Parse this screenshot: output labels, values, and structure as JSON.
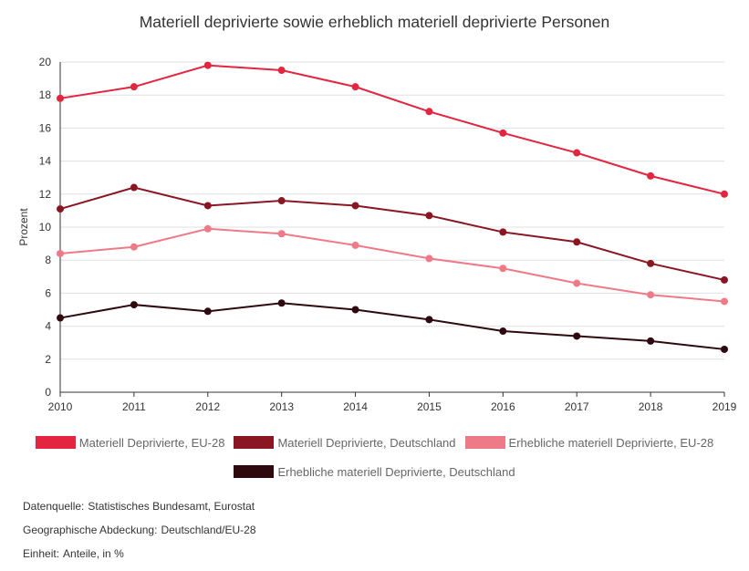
{
  "chart_data": {
    "type": "line",
    "title": "Materiell deprivierte sowie erheblich materiell deprivierte Personen",
    "xlabel": "",
    "ylabel": "Prozent",
    "x": [
      "2010",
      "2011",
      "2012",
      "2013",
      "2014",
      "2015",
      "2016",
      "2017",
      "2018",
      "2019"
    ],
    "ylim": [
      0,
      20
    ],
    "yticks": [
      0,
      2,
      4,
      6,
      8,
      10,
      12,
      14,
      16,
      18,
      20
    ],
    "grid": true,
    "legend_position": "bottom",
    "series": [
      {
        "name": "Materiell Deprivierte, EU-28",
        "color": "#e3253f",
        "values": [
          17.8,
          18.5,
          19.8,
          19.5,
          18.5,
          17.0,
          15.7,
          14.5,
          13.1,
          12.0
        ]
      },
      {
        "name": "Materiell Deprivierte, Deutschland",
        "color": "#8b1623",
        "values": [
          11.1,
          12.4,
          11.3,
          11.6,
          11.3,
          10.7,
          9.7,
          9.1,
          7.8,
          6.8
        ]
      },
      {
        "name": "Erhebliche materiell Deprivierte, EU-28",
        "color": "#ef7a87",
        "values": [
          8.4,
          8.8,
          9.9,
          9.6,
          8.9,
          8.1,
          7.5,
          6.6,
          5.9,
          5.5
        ]
      },
      {
        "name": "Erhebliche materiell Deprivierte, Deutschland",
        "color": "#2e0a0f",
        "values": [
          4.5,
          5.3,
          4.9,
          5.4,
          5.0,
          4.4,
          3.7,
          3.4,
          3.1,
          2.6
        ]
      }
    ]
  },
  "footer": {
    "source_label": "Datenquelle:",
    "source_value": "Statistisches Bundesamt, Eurostat",
    "coverage_label": "Geographische Abdeckung:",
    "coverage_value": "Deutschland/EU-28",
    "unit_label": "Einheit:",
    "unit_value": "Anteile, in %"
  }
}
